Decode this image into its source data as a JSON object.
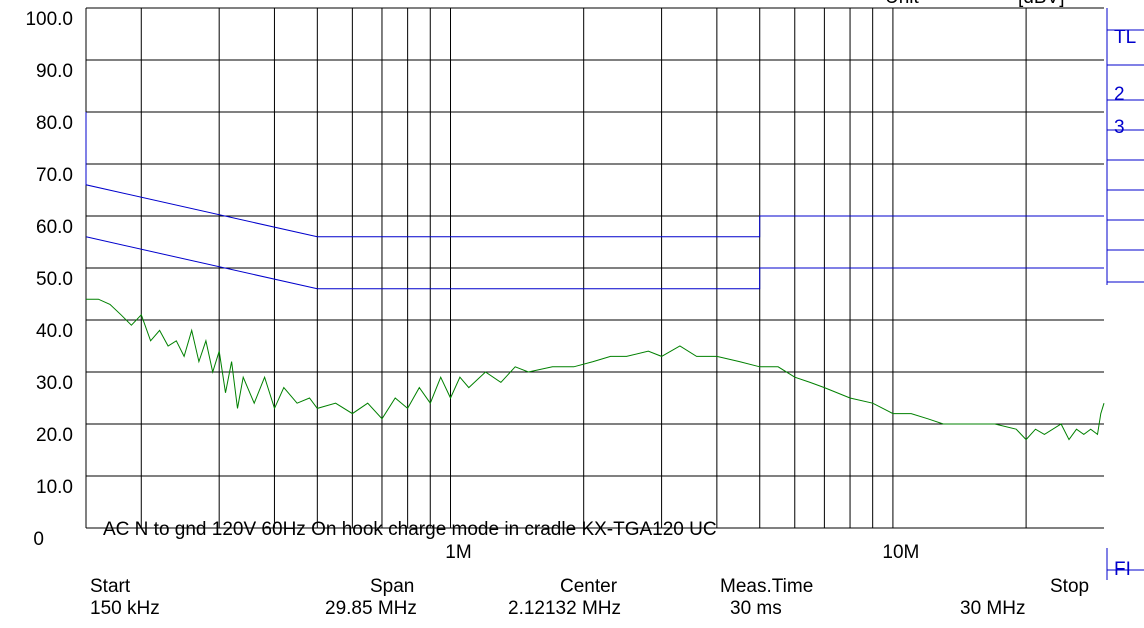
{
  "chart_data": {
    "type": "line",
    "header": {
      "unit_label": "Unit",
      "unit": "[dBV]"
    },
    "annotation": "AC N to gnd 120V 60Hz On hook charge mode in cradle KX-TGA120 UC",
    "log_x": true,
    "grid": true,
    "xlim": [
      0.15,
      30
    ],
    "ylim": [
      0,
      100
    ],
    "xticks": [
      {
        "value": 1,
        "label": "1M"
      },
      {
        "value": 10,
        "label": "10M"
      }
    ],
    "xminor": [
      0.2,
      0.3,
      0.4,
      0.5,
      0.6,
      0.7,
      0.8,
      0.9,
      2,
      3,
      4,
      5,
      6,
      7,
      8,
      9,
      20
    ],
    "yticks": [
      {
        "value": 100,
        "label": "100.0"
      },
      {
        "value": 90,
        "label": "90.0"
      },
      {
        "value": 80,
        "label": "80.0"
      },
      {
        "value": 70,
        "label": "70.0"
      },
      {
        "value": 60,
        "label": "60.0"
      },
      {
        "value": 50,
        "label": "50.0"
      },
      {
        "value": 40,
        "label": "40.0"
      },
      {
        "value": 30,
        "label": "30.0"
      },
      {
        "value": 20,
        "label": "20.0"
      },
      {
        "value": 10,
        "label": "10.0"
      },
      0
    ],
    "series": [
      {
        "color": "#0000cc",
        "x": [
          0.15,
          0.15,
          0.5,
          5,
          5,
          30
        ],
        "values": [
          80,
          66,
          56,
          56,
          60,
          60
        ]
      },
      {
        "color": "#0000cc",
        "x": [
          0.15,
          0.5,
          5,
          5,
          30
        ],
        "values": [
          56,
          46,
          46,
          50,
          50
        ]
      },
      {
        "color": "#008000",
        "x": [
          0.15,
          0.16,
          0.17,
          0.18,
          0.19,
          0.2,
          0.21,
          0.22,
          0.23,
          0.24,
          0.25,
          0.26,
          0.27,
          0.28,
          0.29,
          0.3,
          0.31,
          0.32,
          0.33,
          0.34,
          0.36,
          0.38,
          0.4,
          0.42,
          0.45,
          0.48,
          0.5,
          0.55,
          0.6,
          0.65,
          0.7,
          0.75,
          0.8,
          0.85,
          0.9,
          0.95,
          1.0,
          1.05,
          1.1,
          1.2,
          1.3,
          1.4,
          1.5,
          1.7,
          1.9,
          2.1,
          2.3,
          2.5,
          2.8,
          3.0,
          3.3,
          3.6,
          4.0,
          4.5,
          5.0,
          5.5,
          6,
          6.5,
          7,
          8,
          9,
          10,
          11,
          12,
          13,
          15,
          17,
          19,
          20,
          21,
          22,
          24,
          25,
          26,
          27,
          28,
          29,
          29.5,
          30
        ],
        "values": [
          44,
          44,
          43,
          41,
          39,
          41,
          36,
          38,
          35,
          36,
          33,
          38,
          32,
          36,
          30,
          34,
          26,
          32,
          23,
          29,
          24,
          29,
          23,
          27,
          24,
          25,
          23,
          24,
          22,
          24,
          21,
          25,
          23,
          27,
          24,
          29,
          25,
          29,
          27,
          30,
          28,
          31,
          30,
          31,
          31,
          32,
          33,
          33,
          34,
          33,
          35,
          33,
          33,
          32,
          31,
          31,
          29,
          28,
          27,
          25,
          24,
          22,
          22,
          21,
          20,
          20,
          20,
          19,
          17,
          19,
          18,
          20,
          17,
          19,
          18,
          19,
          18,
          22,
          24
        ]
      }
    ],
    "side_labels": [
      "TL",
      "2",
      "3",
      "FI"
    ],
    "footer": [
      {
        "label": "Start",
        "value": "150 kHz"
      },
      {
        "label": "Span",
        "value": "29.85 MHz"
      },
      {
        "label": "Center",
        "value": "2.12132 MHz"
      },
      {
        "label": "Meas.Time",
        "value": "30 ms"
      },
      {
        "label": "Stop",
        "value": "30 MHz"
      }
    ]
  }
}
